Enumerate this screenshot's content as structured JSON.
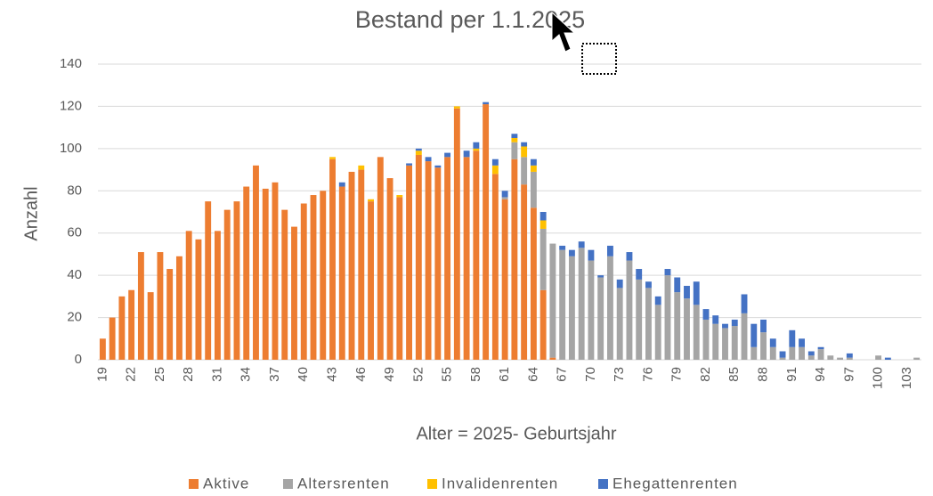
{
  "chart_data": {
    "type": "stacked-bar",
    "title": "Bestand per 1.1.2025",
    "x_label": "Alter = 2025- Geburtsjahr",
    "y_label": "Anzahl",
    "categories": [
      "19",
      null,
      null,
      "22",
      null,
      null,
      "25",
      null,
      null,
      "28",
      null,
      null,
      "31",
      null,
      null,
      "34",
      null,
      null,
      "37",
      null,
      null,
      "40",
      null,
      null,
      "43",
      null,
      null,
      "46",
      null,
      null,
      "49",
      null,
      null,
      "52",
      null,
      null,
      "55",
      null,
      null,
      "58",
      null,
      null,
      "61",
      null,
      null,
      "64",
      null,
      null,
      "67",
      null,
      null,
      "70",
      null,
      null,
      "73",
      null,
      null,
      "76",
      null,
      null,
      "79",
      null,
      null,
      "82",
      null,
      null,
      "85",
      null,
      null,
      "88",
      null,
      null,
      "91",
      null,
      null,
      "94",
      null,
      null,
      "97",
      null,
      null,
      "100",
      null,
      null,
      "103",
      null
    ],
    "series": [
      {
        "name": "Aktive",
        "color": "#ed7d31",
        "values": [
          10,
          20,
          30,
          33,
          51,
          32,
          51,
          43,
          49,
          61,
          57,
          75,
          61,
          71,
          75,
          82,
          92,
          81,
          84,
          71,
          63,
          74,
          78,
          80,
          95,
          82,
          89,
          90,
          75,
          96,
          86,
          77,
          92,
          97,
          94,
          91,
          96,
          119,
          96,
          99,
          121,
          88,
          76,
          95,
          83,
          72,
          33,
          1,
          0,
          0,
          0,
          0,
          0,
          0,
          0,
          0,
          0,
          0,
          0,
          0,
          0,
          0,
          0,
          0,
          0,
          0,
          0,
          0,
          0,
          0,
          0,
          0,
          0,
          0,
          0,
          0,
          0,
          0,
          0,
          0,
          0,
          0,
          0,
          0,
          0,
          0
        ]
      },
      {
        "name": "Altersrenten",
        "color": "#a5a5a5",
        "values": [
          0,
          0,
          0,
          0,
          0,
          0,
          0,
          0,
          0,
          0,
          0,
          0,
          0,
          0,
          0,
          0,
          0,
          0,
          0,
          0,
          0,
          0,
          0,
          0,
          0,
          0,
          0,
          0,
          0,
          0,
          0,
          0,
          0,
          0,
          0,
          0,
          0,
          0,
          0,
          0,
          0,
          0,
          1,
          8,
          13,
          17,
          29,
          54,
          52,
          49,
          53,
          47,
          39,
          49,
          34,
          47,
          38,
          34,
          26,
          40,
          32,
          29,
          26,
          19,
          17,
          15,
          16,
          22,
          6,
          13,
          6,
          1,
          6,
          6,
          2,
          5,
          2,
          1,
          1,
          0,
          0,
          2,
          0,
          0,
          0,
          1
        ]
      },
      {
        "name": "Invalidenrenten",
        "color": "#ffc000",
        "values": [
          0,
          0,
          0,
          0,
          0,
          0,
          0,
          0,
          0,
          0,
          0,
          0,
          0,
          0,
          0,
          0,
          0,
          0,
          0,
          0,
          0,
          0,
          0,
          0,
          1,
          0,
          0,
          2,
          1,
          0,
          0,
          1,
          0,
          2,
          0,
          0,
          0,
          1,
          0,
          1,
          0,
          4,
          0,
          2,
          5,
          3,
          4,
          0,
          0,
          0,
          0,
          0,
          0,
          0,
          0,
          0,
          0,
          0,
          0,
          0,
          0,
          0,
          0,
          0,
          0,
          0,
          0,
          0,
          0,
          0,
          0,
          0,
          0,
          0,
          0,
          0,
          0,
          0,
          0,
          0,
          0,
          0,
          0,
          0,
          0,
          0
        ]
      },
      {
        "name": "Ehegattenrenten",
        "color": "#4472c4",
        "values": [
          0,
          0,
          0,
          0,
          0,
          0,
          0,
          0,
          0,
          0,
          0,
          0,
          0,
          0,
          0,
          0,
          0,
          0,
          0,
          0,
          0,
          0,
          0,
          0,
          0,
          2,
          0,
          0,
          0,
          0,
          0,
          0,
          1,
          1,
          2,
          1,
          2,
          0,
          3,
          3,
          1,
          3,
          3,
          2,
          2,
          3,
          4,
          0,
          2,
          3,
          3,
          5,
          1,
          5,
          4,
          4,
          5,
          3,
          4,
          3,
          7,
          6,
          11,
          5,
          4,
          2,
          3,
          9,
          11,
          6,
          4,
          3,
          8,
          4,
          2,
          1,
          0,
          0,
          2,
          0,
          0,
          0,
          1,
          0,
          0,
          0
        ]
      }
    ],
    "ylim": [
      0,
      140
    ],
    "yticks": [
      0,
      20,
      40,
      60,
      80,
      100,
      120,
      140
    ],
    "grid": true,
    "legend": "bottom"
  }
}
